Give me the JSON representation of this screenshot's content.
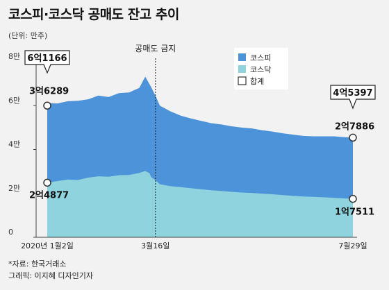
{
  "title": "코스피·코스닥 공매도 잔고 추이",
  "unit_note": "(단위: 만주)",
  "source": "*자료: 한국거래소",
  "credit": "그래픽: 이지혜 디자인기자",
  "colors": {
    "background": "#f2f2f2",
    "kospi": "#4d93d9",
    "kosdaq": "#8ed3dd",
    "axis": "#444444",
    "marker": "#ffffff"
  },
  "chart_data": {
    "type": "area",
    "stacked": true,
    "ylim": [
      0,
      80000
    ],
    "yticks": [
      {
        "value": 0,
        "label": "0"
      },
      {
        "value": 20000,
        "label": "2만"
      },
      {
        "value": 40000,
        "label": "4만"
      },
      {
        "value": 60000,
        "label": "6만"
      },
      {
        "value": 80000,
        "label": "8만"
      }
    ],
    "xticks": [
      {
        "date": "2020-01-02",
        "label": "2020년 1월2일"
      },
      {
        "date": "2020-03-16",
        "label": "3월16일"
      },
      {
        "date": "2020-07-29",
        "label": "7월29일"
      }
    ],
    "legend": {
      "position": "top-right",
      "items": [
        {
          "label": "코스피",
          "swatch": "kospi"
        },
        {
          "label": "코스닥",
          "swatch": "kosdaq"
        },
        {
          "label": "합계",
          "swatch": "marker"
        }
      ]
    },
    "series": [
      {
        "name": "코스닥",
        "color": "#8ed3dd",
        "points": [
          [
            "2020-01-02",
            24877
          ],
          [
            "2020-01-09",
            25600
          ],
          [
            "2020-01-16",
            26300
          ],
          [
            "2020-01-23",
            26100
          ],
          [
            "2020-01-30",
            27200
          ],
          [
            "2020-02-06",
            27800
          ],
          [
            "2020-02-13",
            27600
          ],
          [
            "2020-02-20",
            28300
          ],
          [
            "2020-02-27",
            28400
          ],
          [
            "2020-03-05",
            29300
          ],
          [
            "2020-03-09",
            30200
          ],
          [
            "2020-03-12",
            29200
          ],
          [
            "2020-03-13",
            27500
          ],
          [
            "2020-03-16",
            26000
          ],
          [
            "2020-03-19",
            24200
          ],
          [
            "2020-03-26",
            23300
          ],
          [
            "2020-04-02",
            22900
          ],
          [
            "2020-04-09",
            22400
          ],
          [
            "2020-04-16",
            21900
          ],
          [
            "2020-04-23",
            21400
          ],
          [
            "2020-04-30",
            21100
          ],
          [
            "2020-05-07",
            20700
          ],
          [
            "2020-05-14",
            20400
          ],
          [
            "2020-05-21",
            20200
          ],
          [
            "2020-05-28",
            19900
          ],
          [
            "2020-06-04",
            19600
          ],
          [
            "2020-06-11",
            19200
          ],
          [
            "2020-06-18",
            18900
          ],
          [
            "2020-06-25",
            18600
          ],
          [
            "2020-07-02",
            18400
          ],
          [
            "2020-07-09",
            18200
          ],
          [
            "2020-07-16",
            18000
          ],
          [
            "2020-07-22",
            17800
          ],
          [
            "2020-07-29",
            17511
          ]
        ]
      },
      {
        "name": "코스피",
        "color": "#4d93d9",
        "points": [
          [
            "2020-01-02",
            36289
          ],
          [
            "2020-01-09",
            35400
          ],
          [
            "2020-01-16",
            35700
          ],
          [
            "2020-01-23",
            36100
          ],
          [
            "2020-01-30",
            35700
          ],
          [
            "2020-02-06",
            36800
          ],
          [
            "2020-02-13",
            36300
          ],
          [
            "2020-02-20",
            37400
          ],
          [
            "2020-02-27",
            37600
          ],
          [
            "2020-03-05",
            38800
          ],
          [
            "2020-03-09",
            43000
          ],
          [
            "2020-03-12",
            40500
          ],
          [
            "2020-03-13",
            41000
          ],
          [
            "2020-03-16",
            38500
          ],
          [
            "2020-03-19",
            35800
          ],
          [
            "2020-03-26",
            34200
          ],
          [
            "2020-04-02",
            32600
          ],
          [
            "2020-04-09",
            31800
          ],
          [
            "2020-04-16",
            31200
          ],
          [
            "2020-04-23",
            30600
          ],
          [
            "2020-04-30",
            30300
          ],
          [
            "2020-05-07",
            29900
          ],
          [
            "2020-05-14",
            29600
          ],
          [
            "2020-05-21",
            29400
          ],
          [
            "2020-05-28",
            28900
          ],
          [
            "2020-06-04",
            28600
          ],
          [
            "2020-06-11",
            28200
          ],
          [
            "2020-06-18",
            27900
          ],
          [
            "2020-06-25",
            27600
          ],
          [
            "2020-07-02",
            27600
          ],
          [
            "2020-07-09",
            27800
          ],
          [
            "2020-07-16",
            28000
          ],
          [
            "2020-07-22",
            27900
          ],
          [
            "2020-07-29",
            27886
          ]
        ]
      }
    ],
    "annotations": {
      "event": {
        "date": "2020-03-16",
        "label": "공매도 금지"
      },
      "start": {
        "date": "2020-01-02",
        "total_label": "6억1166",
        "labels": [
          {
            "series": "코스피",
            "value": 60000,
            "text": "3억6289"
          },
          {
            "series": "코스닥",
            "value": 24877,
            "text": "2억4877"
          }
        ]
      },
      "end": {
        "date": "2020-07-29",
        "total_label": "4억5397",
        "labels": [
          {
            "series": "코스피",
            "value": 45397,
            "text": "2억7886"
          },
          {
            "series": "코스닥",
            "value": 17511,
            "text": "1억7511"
          }
        ]
      }
    }
  }
}
